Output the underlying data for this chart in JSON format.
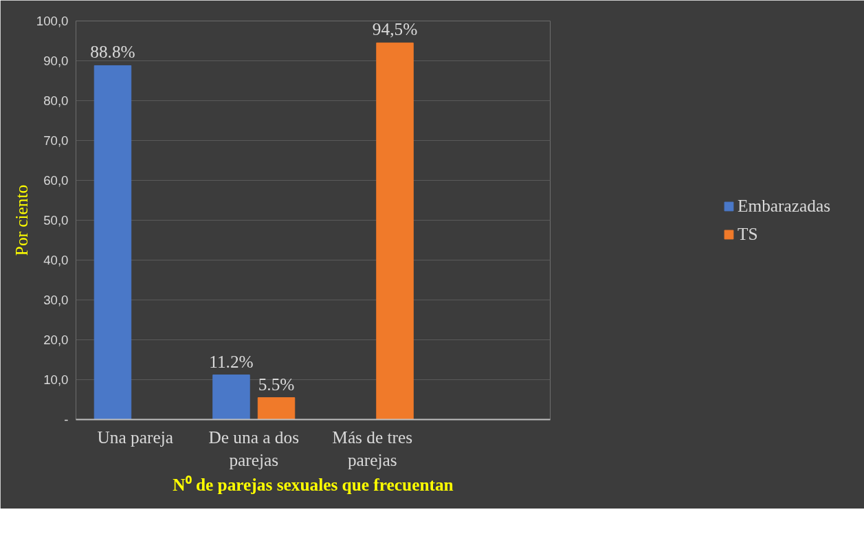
{
  "chart_data": {
    "type": "bar",
    "xlabel": "N⁰ de parejas sexuales que frecuentan",
    "ylabel": "Por ciento",
    "categories": [
      "Una pareja",
      "De una a dos parejas",
      "Más de tres parejas",
      null
    ],
    "series": [
      {
        "name": "Embarazadas",
        "color": "#4a78c8",
        "values": [
          88.8,
          11.2,
          null,
          null
        ],
        "value_labels": [
          "88.8%",
          "11.2%",
          null,
          null
        ]
      },
      {
        "name": "TS",
        "color": "#f07a2a",
        "values": [
          null,
          5.5,
          94.5,
          null
        ],
        "value_labels": [
          null,
          "5.5%",
          "94,5%",
          null
        ]
      }
    ],
    "ylim": [
      0,
      100
    ],
    "yticks": [
      {
        "value": 0,
        "label": "-"
      },
      {
        "value": 10,
        "label": "10,0"
      },
      {
        "value": 20,
        "label": "20,0"
      },
      {
        "value": 30,
        "label": "30,0"
      },
      {
        "value": 40,
        "label": "40,0"
      },
      {
        "value": 50,
        "label": "50,0"
      },
      {
        "value": 60,
        "label": "60,0"
      },
      {
        "value": 70,
        "label": "70,0"
      },
      {
        "value": 80,
        "label": "80,0"
      },
      {
        "value": 90,
        "label": "90,0"
      },
      {
        "value": 100,
        "label": "100,0"
      }
    ],
    "grid": "y",
    "legend": "right"
  }
}
